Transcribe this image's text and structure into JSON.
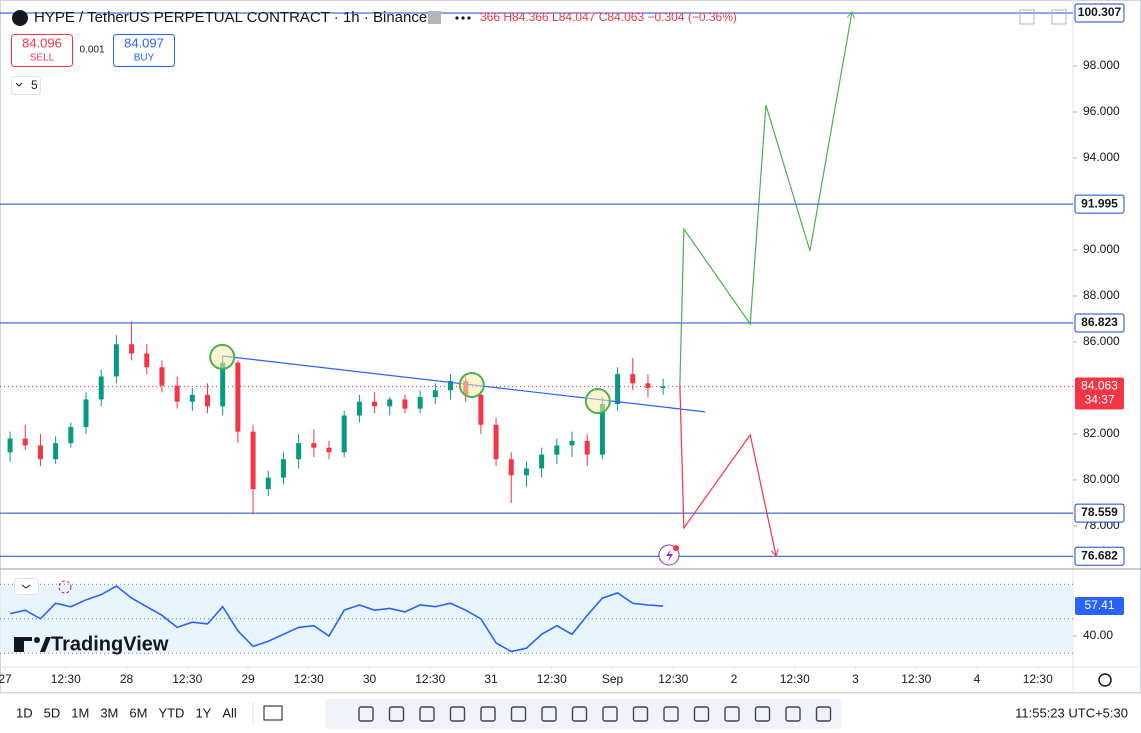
{
  "ui": {
    "symbol_title": "HYPE / TetherUS PERPETUAL CONTRACT · 1h · Binance",
    "ohlc_text": "366 H84.366 L84.047 C84.063 −0.304 (−0.36%)",
    "sell_price": "84.096",
    "sell_label": "SELL",
    "spread": "0.001",
    "buy_price": "84.097",
    "buy_label": "BUY",
    "indicator_count": "5",
    "logo": "TradingView",
    "ranges": [
      "1D",
      "5D",
      "1M",
      "3M",
      "6M",
      "YTD",
      "1Y",
      "All"
    ],
    "clock": "11:55:23 UTC+5:30"
  },
  "chart_data": [
    {
      "type": "candlestick",
      "up_color": "#089981",
      "down_color": "#f23645",
      "xlim": [
        -0.99,
        210.96
      ],
      "ylim": [
        76.17,
        100.87
      ],
      "xticks": [
        {
          "value": 0,
          "label": "27"
        },
        {
          "value": 12,
          "label": "12:30"
        },
        {
          "value": 24,
          "label": "28"
        },
        {
          "value": 36,
          "label": "12:30"
        },
        {
          "value": 48,
          "label": "29"
        },
        {
          "value": 60,
          "label": "12:30"
        },
        {
          "value": 72,
          "label": "30"
        },
        {
          "value": 84,
          "label": "12:30"
        },
        {
          "value": 96,
          "label": "31"
        },
        {
          "value": 108,
          "label": "12:30"
        },
        {
          "value": 120,
          "label": "Sep"
        },
        {
          "value": 132,
          "label": "12:30"
        },
        {
          "value": 144,
          "label": "2"
        },
        {
          "value": 156,
          "label": "12:30"
        },
        {
          "value": 168,
          "label": "3"
        },
        {
          "value": 180,
          "label": "12:30"
        },
        {
          "value": 192,
          "label": "4"
        },
        {
          "value": 204,
          "label": "12:30"
        }
      ],
      "yticks": [
        {
          "value": 78,
          "label": "78.000"
        },
        {
          "value": 80,
          "label": "80.000"
        },
        {
          "value": 82,
          "label": "82.000"
        },
        {
          "value": 86,
          "label": "86.000"
        },
        {
          "value": 88,
          "label": "88.000"
        },
        {
          "value": 90,
          "label": "90.000"
        },
        {
          "value": 94,
          "label": "94.000"
        },
        {
          "value": 96,
          "label": "96.000"
        },
        {
          "value": 98,
          "label": "98.000"
        }
      ],
      "x": [
        1,
        4,
        7,
        10,
        13,
        16,
        19,
        22,
        25,
        28,
        31,
        34,
        37,
        40,
        43,
        46,
        49,
        52,
        55,
        58,
        61,
        64,
        67,
        70,
        73,
        76,
        79,
        82,
        85,
        88,
        91,
        94,
        97,
        100,
        103,
        106,
        109,
        112,
        115,
        118,
        121,
        124,
        127,
        130
      ],
      "open": [
        81.2,
        81.8,
        81.5,
        80.9,
        81.6,
        82.3,
        83.5,
        84.5,
        85.9,
        85.5,
        84.9,
        84.1,
        83.4,
        83.7,
        83.2,
        85.1,
        82.1,
        79.6,
        80.1,
        80.9,
        81.6,
        81.4,
        81.2,
        82.8,
        83.4,
        83.2,
        83.5,
        83.1,
        83.6,
        83.9,
        84.3,
        83.7,
        82.4,
        80.9,
        80.2,
        80.5,
        81.1,
        81.5,
        81.7,
        81.1,
        83.3,
        84.6,
        84.2,
        84.0
      ],
      "high": [
        82.1,
        82.4,
        82.0,
        81.9,
        82.5,
        83.8,
        84.8,
        86.3,
        86.9,
        85.9,
        85.2,
        84.5,
        84.0,
        84.2,
        85.4,
        85.2,
        82.4,
        80.4,
        81.2,
        82.0,
        82.2,
        81.7,
        83.0,
        83.7,
        83.8,
        83.6,
        83.7,
        83.9,
        84.2,
        84.6,
        84.5,
        83.9,
        82.7,
        81.2,
        80.8,
        81.4,
        81.8,
        82.1,
        82.0,
        83.6,
        84.9,
        85.3,
        84.6,
        84.4
      ],
      "low": [
        80.8,
        81.3,
        80.6,
        80.7,
        81.4,
        82.0,
        83.2,
        84.2,
        85.2,
        84.6,
        83.8,
        83.1,
        83.0,
        82.9,
        82.8,
        81.6,
        78.5,
        79.3,
        79.8,
        80.5,
        81.0,
        80.9,
        81.0,
        82.5,
        82.9,
        82.8,
        82.9,
        82.9,
        83.3,
        83.5,
        83.4,
        82.0,
        80.6,
        79.0,
        79.7,
        80.1,
        80.7,
        81.0,
        80.6,
        80.9,
        83.0,
        83.9,
        83.6,
        83.7
      ],
      "close": [
        81.8,
        81.5,
        80.9,
        81.6,
        82.3,
        83.5,
        84.5,
        85.9,
        85.5,
        84.9,
        84.1,
        83.4,
        83.7,
        83.2,
        85.1,
        82.1,
        79.6,
        80.1,
        80.9,
        81.6,
        81.4,
        81.2,
        82.8,
        83.4,
        83.2,
        83.5,
        83.1,
        83.6,
        83.9,
        84.3,
        83.7,
        82.4,
        80.9,
        80.2,
        80.5,
        81.1,
        81.5,
        81.7,
        81.1,
        83.3,
        84.6,
        84.2,
        84.0,
        84.063
      ],
      "levels": [
        100.307,
        91.995,
        86.823,
        78.559,
        76.682
      ],
      "level_color": "#1848cc",
      "last": 84.063,
      "countdown": "34:37",
      "last_color": "#f23645",
      "trendline": {
        "color": "#2962ff",
        "x": [
          42.9,
          138.3
        ],
        "y": [
          85.39,
          82.96
        ]
      },
      "circles": {
        "x": [
          42.9,
          92.2,
          117.1
        ],
        "y": [
          85.35,
          84.13,
          83.43
        ]
      },
      "projections": [
        {
          "color": "#4caf50",
          "x": [
            133.3,
            134.1,
            147.2,
            150.3,
            159.0,
            167.3
          ],
          "y": [
            84.13,
            90.91,
            86.78,
            96.3,
            89.96,
            100.35
          ]
        },
        {
          "color": "#f23645",
          "x": [
            133.3,
            134.1,
            147.2,
            152.3
          ],
          "y": [
            84.13,
            77.91,
            81.96,
            76.7
          ]
        }
      ]
    },
    {
      "type": "line",
      "color": "#2962ff",
      "xlim": [
        -0.99,
        210.96
      ],
      "ylim": [
        23.2,
        78.3
      ],
      "yticks": [
        {
          "value": 40,
          "label": "40.00"
        }
      ],
      "levels": [
        30,
        50,
        70
      ],
      "x": [
        1,
        4,
        7,
        10,
        13,
        16,
        19,
        22,
        25,
        28,
        31,
        34,
        37,
        40,
        43,
        46,
        49,
        52,
        55,
        58,
        61,
        64,
        67,
        70,
        73,
        76,
        79,
        82,
        85,
        88,
        91,
        94,
        97,
        100,
        103,
        106,
        109,
        112,
        115,
        118,
        121,
        124,
        127,
        130
      ],
      "values": [
        53,
        55,
        50,
        59,
        57,
        61,
        64,
        69,
        62,
        57,
        52,
        45,
        48,
        47,
        57,
        43,
        34,
        37,
        41,
        45,
        46,
        40,
        55,
        58,
        55,
        56,
        54,
        58,
        57,
        59,
        55,
        50,
        36,
        31,
        33,
        41,
        46,
        41,
        52,
        62,
        65,
        59,
        58,
        57.41
      ]
    }
  ]
}
